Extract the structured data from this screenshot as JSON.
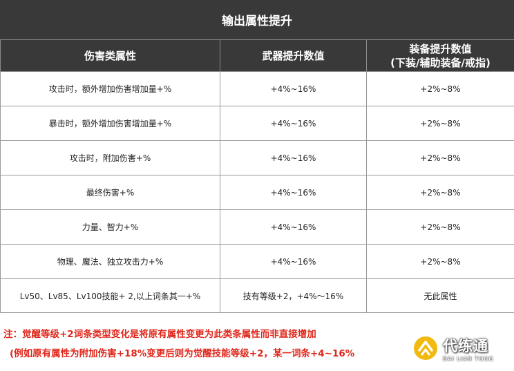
{
  "title": "输出属性提升",
  "headers": [
    "伤害类属性",
    "武器提升数值",
    "装备提升数值",
    "(下装/辅助装备/戒指)"
  ],
  "rows": [
    {
      "attr": "攻击时，额外增加伤害增加量+%",
      "weapon": "+4%~16%",
      "equip": "+2%~8%"
    },
    {
      "attr": "暴击时，额外增加伤害增加量+%",
      "weapon": "+4%~16%",
      "equip": "+2%~8%"
    },
    {
      "attr": "攻击时，附加伤害+%",
      "weapon": "+4%~16%",
      "equip": "+2%~8%"
    },
    {
      "attr": "最终伤害+%",
      "weapon": "+4%~16%",
      "equip": "+2%~8%"
    },
    {
      "attr": "力量、智力+%",
      "weapon": "+4%~16%",
      "equip": "+2%~8%"
    },
    {
      "attr": "物理、魔法、独立攻击力+%",
      "weapon": "+4%~16%",
      "equip": "+2%~8%"
    },
    {
      "attr": "Lv50、Lv85、Lv100技能+ 2,以上词条其一+%",
      "weapon": "技有等级+2，+4%～16%",
      "equip": "无此属性"
    }
  ],
  "note": {
    "line1": "注：觉醒等级+2词条类型变化是将原有属性变更为此类条属性而非直接增加",
    "line2": "(例如原有属性为附加伤害+18%变更后则为觉醒技能等级+2，某一词条+4~16%"
  },
  "watermark": {
    "main": "代练通",
    "sub": "DAI LIAN TONG"
  },
  "colors": {
    "header_bg": "#3a3939",
    "note_red": "#e0261a",
    "watermark_accent": "#f2b400"
  }
}
